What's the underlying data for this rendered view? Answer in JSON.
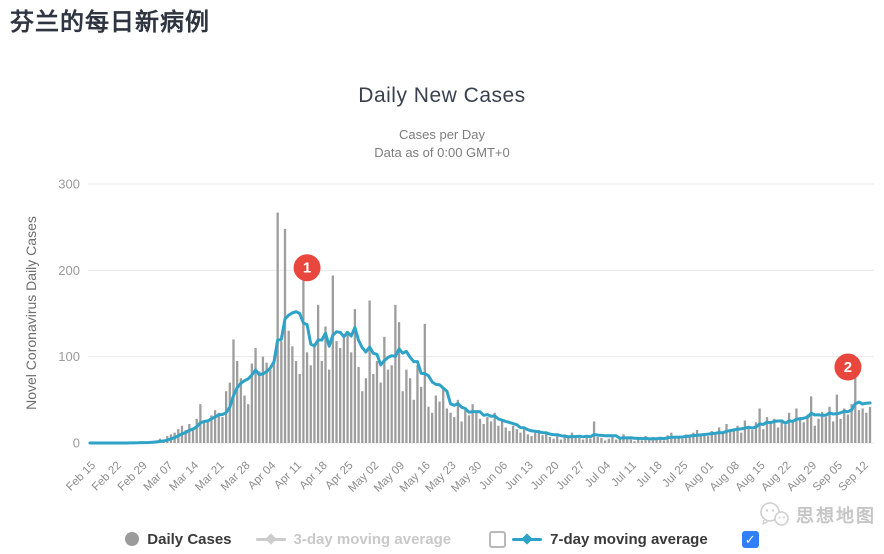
{
  "page": {
    "title": "芬兰的每日新病例"
  },
  "chart": {
    "title": "Daily New Cases",
    "subtitle1": "Cases per Day",
    "subtitle2": "Data as of 0:00 GMT+0",
    "y_axis_title": "Novel Coronavirus Daily Cases"
  },
  "legend": {
    "daily_cases": "Daily Cases",
    "ma3": "3-day moving average",
    "ma7": "7-day moving average",
    "checkbox_checked_glyph": "✓"
  },
  "watermark": {
    "text": "思想地图"
  },
  "colors": {
    "bar": "#9d9d9d",
    "ma7_line": "#2ea3c7",
    "grid": "#e8e8e8",
    "annotation_red": "#e9473e",
    "checkbox_blue": "#2f80f7",
    "axis_tick": "#9b9b9b",
    "x_label": "#8d8d8d",
    "y_axis_title": "#6e6e6e"
  },
  "chart_data": {
    "type": "bar",
    "title": "Daily New Cases",
    "xlabel": "",
    "ylabel": "Novel Coronavirus Daily Cases",
    "ylim": [
      0,
      300
    ],
    "y_ticks": [
      0,
      100,
      200,
      300
    ],
    "grid": "horizontal",
    "legend_position": "bottom",
    "start_date": "Feb 15",
    "end_date": "Sep 14",
    "x_tick_step_days": 7,
    "x_tick_labels": [
      "Feb 15",
      "Feb 22",
      "Feb 29",
      "Mar 07",
      "Mar 14",
      "Mar 21",
      "Mar 28",
      "Apr 04",
      "Apr 11",
      "Apr 18",
      "Apr 25",
      "May 02",
      "May 09",
      "May 16",
      "May 23",
      "May 30",
      "Jun 06",
      "Jun 13",
      "Jun 20",
      "Jun 27",
      "Jul 04",
      "Jul 11",
      "Jul 18",
      "Jul 25",
      "Aug 01",
      "Aug 08",
      "Aug 15",
      "Aug 22",
      "Aug 29",
      "Sep 05",
      "Sep 12"
    ],
    "series": [
      {
        "name": "Daily Cases",
        "type": "bar",
        "color": "#9d9d9d",
        "values": [
          0,
          0,
          0,
          0,
          0,
          0,
          0,
          0,
          0,
          0,
          0,
          1,
          0,
          1,
          1,
          0,
          1,
          2,
          3,
          5,
          4,
          8,
          10,
          12,
          16,
          20,
          15,
          22,
          18,
          28,
          45,
          26,
          25,
          32,
          38,
          35,
          30,
          60,
          70,
          120,
          95,
          75,
          55,
          45,
          92,
          110,
          83,
          100,
          93,
          85,
          95,
          267,
          118,
          248,
          130,
          112,
          95,
          80,
          190,
          105,
          90,
          115,
          160,
          95,
          135,
          85,
          194,
          118,
          110,
          125,
          130,
          105,
          155,
          88,
          60,
          75,
          165,
          80,
          95,
          70,
          123,
          85,
          90,
          160,
          140,
          60,
          85,
          75,
          50,
          90,
          65,
          138,
          42,
          35,
          55,
          48,
          62,
          40,
          35,
          30,
          50,
          25,
          38,
          32,
          45,
          35,
          28,
          22,
          30,
          25,
          35,
          20,
          25,
          18,
          14,
          20,
          16,
          12,
          18,
          10,
          8,
          12,
          15,
          9,
          11,
          7,
          5,
          8,
          4,
          10,
          6,
          12,
          8,
          6,
          4,
          9,
          5,
          25,
          7,
          6,
          3,
          5,
          8,
          4,
          6,
          10,
          5,
          4,
          2,
          6,
          3,
          8,
          5,
          7,
          4,
          6,
          3,
          9,
          12,
          6,
          8,
          5,
          10,
          7,
          12,
          15,
          9,
          11,
          8,
          14,
          10,
          18,
          12,
          22,
          16,
          14,
          20,
          12,
          26,
          18,
          15,
          24,
          40,
          16,
          30,
          22,
          28,
          18,
          25,
          21,
          35,
          26,
          40,
          30,
          24,
          33,
          54,
          20,
          28,
          36,
          30,
          42,
          25,
          56,
          28,
          40,
          33,
          45,
          92,
          38,
          40,
          35,
          42
        ]
      },
      {
        "name": "7-day moving average",
        "type": "line",
        "color": "#2ea3c7",
        "derived": "trailing 7-day mean of Daily Cases"
      }
    ],
    "annotations": [
      {
        "label": "1",
        "day_index": 59,
        "value": 203
      },
      {
        "label": "2",
        "day_index": 206,
        "value": 88
      }
    ]
  }
}
